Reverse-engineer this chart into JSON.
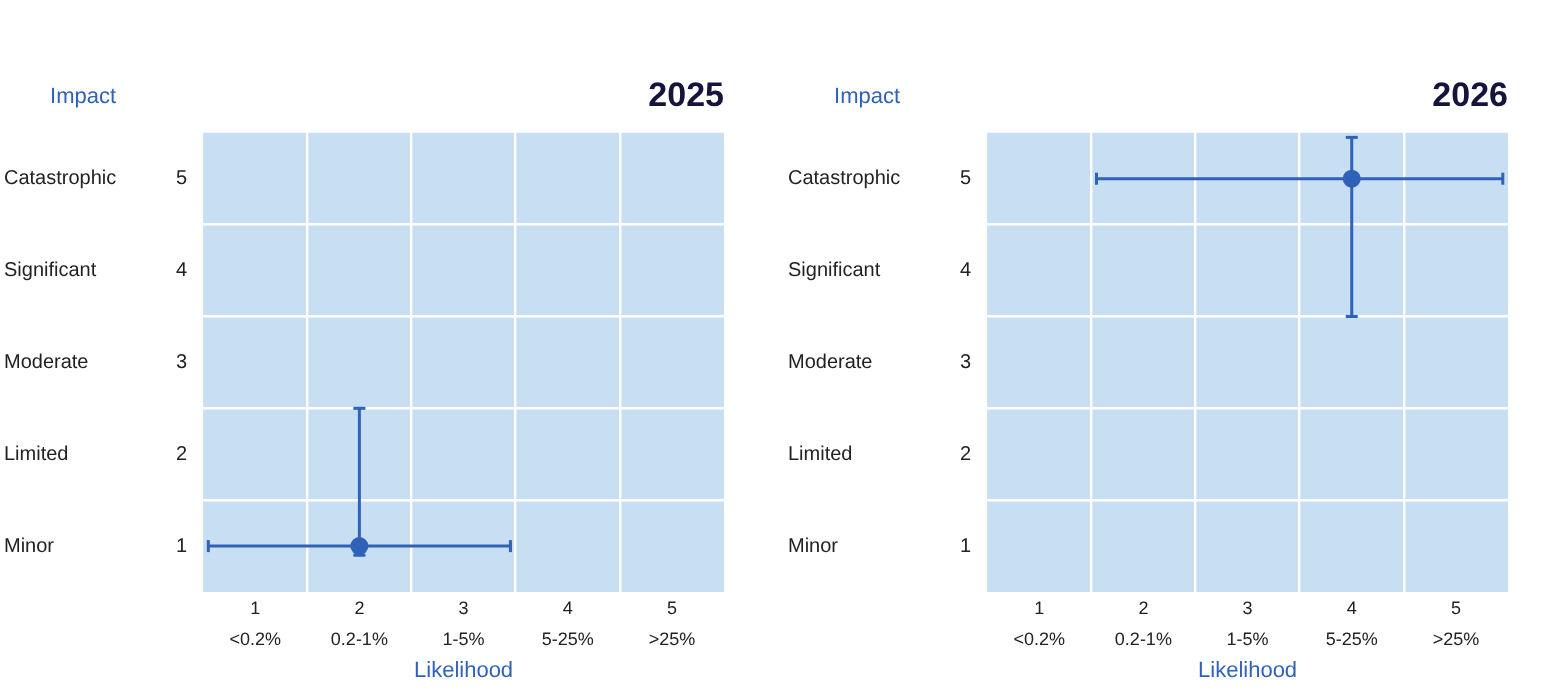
{
  "chart_data": [
    {
      "type": "scatter",
      "title": "2025",
      "xlabel": "Likelihood",
      "ylabel": "Impact",
      "xlim": [
        0.5,
        5.5
      ],
      "ylim": [
        0.5,
        5.5
      ],
      "xticks": [
        1,
        {
          "value": 1.5,
          "label": null
        },
        2,
        {
          "value": 2.5,
          "label": null
        },
        3,
        {
          "value": 3.5,
          "label": null
        },
        4,
        {
          "value": 4.5,
          "label": null
        },
        5
      ],
      "yticks": [
        1,
        {
          "value": 1.5,
          "label": null
        },
        2,
        {
          "value": 2.5,
          "label": null
        },
        3,
        {
          "value": 3.5,
          "label": null
        },
        4,
        {
          "value": 4.5,
          "label": null
        },
        5
      ],
      "annotations": [
        "<0.2%",
        "0.2-1%",
        "1-5%",
        "5-25%",
        ">25%",
        "Minor",
        "Limited",
        "Moderate",
        "Significant",
        "Catastrophic"
      ],
      "grid": true,
      "marker": "circle",
      "series": [
        {
          "color": "#2f62b8",
          "x": [
            2
          ],
          "values": [
            1
          ],
          "xerrors": [
            [
              0.55,
              3.45
            ]
          ],
          "errors": [
            [
              0.9,
              2.5
            ]
          ]
        }
      ]
    },
    {
      "type": "scatter",
      "title": "2026",
      "xlabel": "Likelihood",
      "ylabel": "Impact",
      "xlim": [
        0.5,
        5.5
      ],
      "ylim": [
        0.5,
        5.5
      ],
      "xticks": [
        1,
        {
          "value": 1.5,
          "label": null
        },
        2,
        {
          "value": 2.5,
          "label": null
        },
        3,
        {
          "value": 3.5,
          "label": null
        },
        4,
        {
          "value": 4.5,
          "label": null
        },
        5
      ],
      "yticks": [
        1,
        {
          "value": 1.5,
          "label": null
        },
        2,
        {
          "value": 2.5,
          "label": null
        },
        3,
        {
          "value": 3.5,
          "label": null
        },
        4,
        {
          "value": 4.5,
          "label": null
        },
        5
      ],
      "annotations": [
        "<0.2%",
        "0.2-1%",
        "1-5%",
        "5-25%",
        ">25%",
        "Minor",
        "Limited",
        "Moderate",
        "Significant",
        "Catastrophic"
      ],
      "grid": true,
      "marker": "circle",
      "series": [
        {
          "color": "#2f62b8",
          "x": [
            4
          ],
          "values": [
            5
          ],
          "xerrors": [
            [
              1.55,
              5.45
            ]
          ],
          "errors": [
            [
              3.5,
              5.45
            ]
          ]
        }
      ]
    }
  ]
}
